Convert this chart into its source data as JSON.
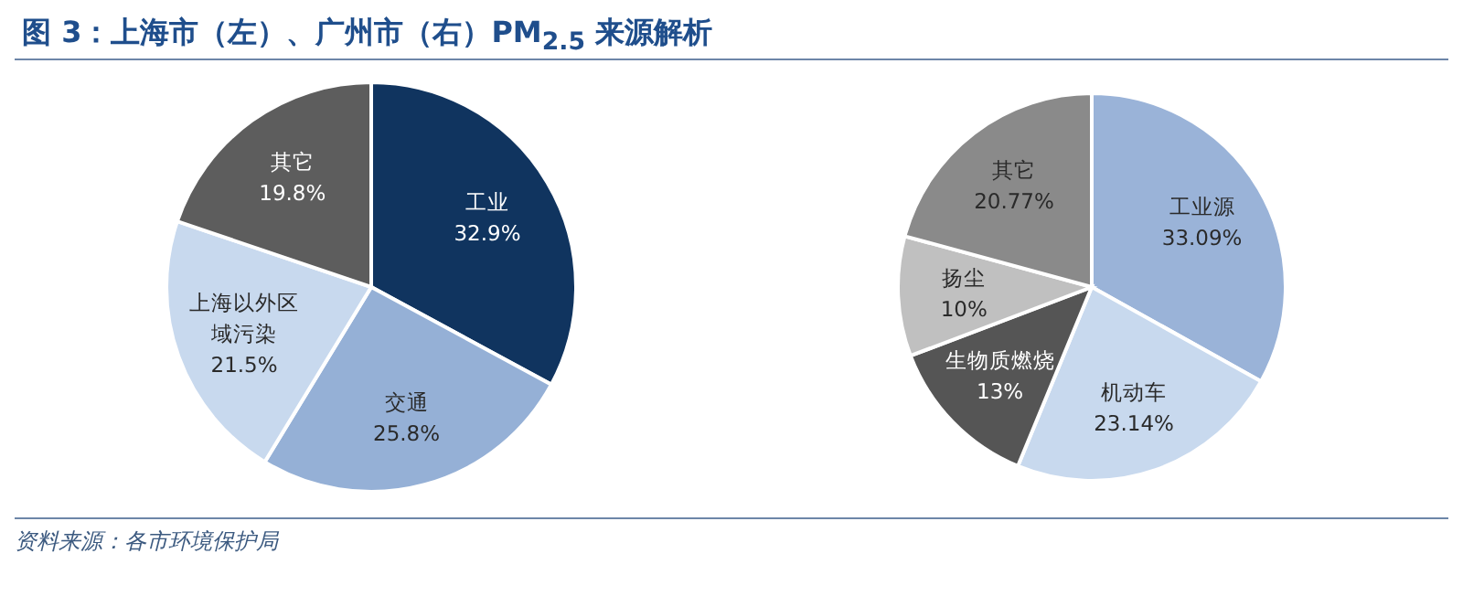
{
  "chart_data": [
    {
      "type": "pie",
      "title": "图 3：上海市（左）、广州市（右）PM$_{2.5}$ 来源解析",
      "categories": [
        "工业",
        "交通",
        "上海以外区域污染",
        "其它"
      ],
      "values": [
        32.9,
        25.8,
        21.5,
        19.8
      ],
      "value_labels": [
        "32.9%",
        "25.8%",
        "21.5%",
        "19.8%"
      ],
      "colors": [
        "#10345f",
        "#95b0d6",
        "#c8d9ee",
        "#5d5d5d"
      ]
    },
    {
      "type": "pie",
      "annotations": [
        "资料来源：各市环境保护局"
      ],
      "categories": [
        "工业源",
        "机动车",
        "生物质燃烧",
        "扬尘",
        "其它"
      ],
      "values": [
        33.09,
        23.14,
        13,
        10,
        20.77
      ],
      "value_labels": [
        "33.09%",
        "23.14%",
        "13%",
        "10%",
        "20.77%"
      ],
      "colors": [
        "#9ab3d8",
        "#c8d9ee",
        "#555555",
        "#c0c0c0",
        "#8a8a8a"
      ]
    }
  ]
}
